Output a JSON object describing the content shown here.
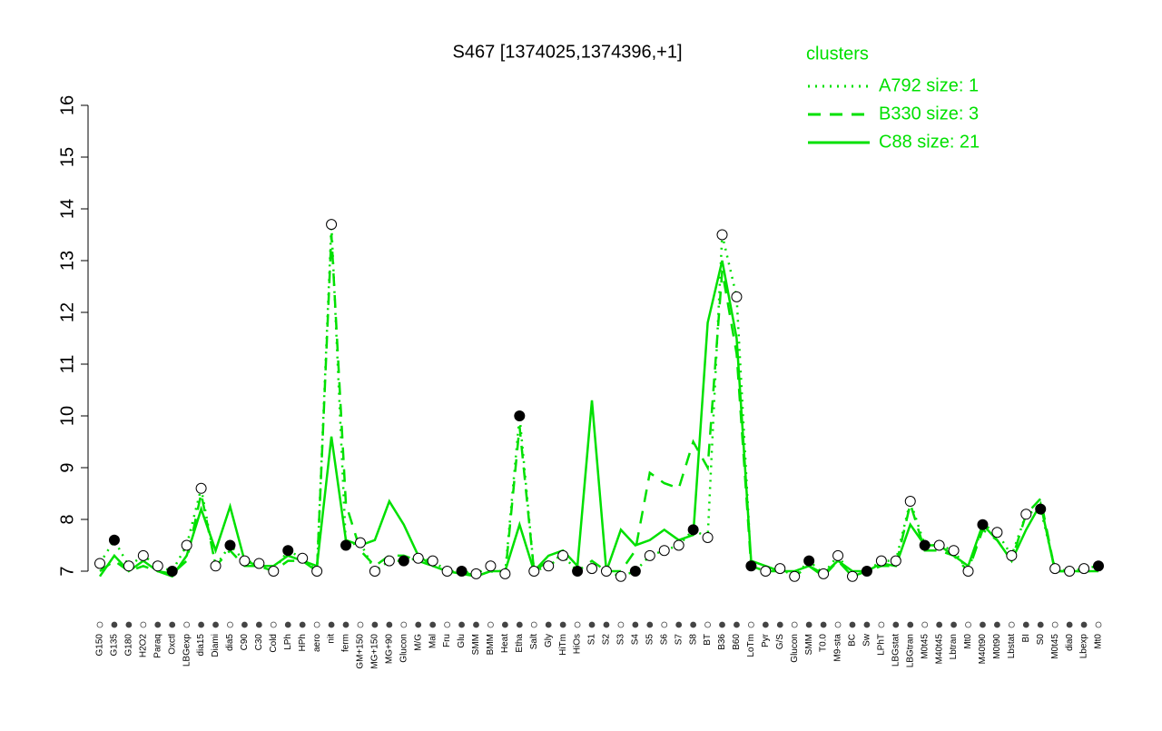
{
  "chart_data": {
    "type": "line",
    "title": "S467 [1374025,1374396,+1]",
    "legend_title": "clusters",
    "legend_color": "#00e000",
    "categories": [
      "G150",
      "G135",
      "G180",
      "H2O2",
      "Paraq",
      "Oxctl",
      "LBGexp",
      "dia15",
      "Diami",
      "dia5",
      "C90",
      "C30",
      "Cold",
      "LPh",
      "HPh",
      "aero",
      "nit",
      "ferm",
      "GM+150",
      "MG+150",
      "MG+90",
      "Glucon",
      "M/G",
      "Mal",
      "Fru",
      "Glu",
      "SMM",
      "BMM",
      "Heat",
      "Etha",
      "Salt",
      "Gly",
      "HiTm",
      "HiOs",
      "S1",
      "S2",
      "S3",
      "S4",
      "S5",
      "S6",
      "S7",
      "S8",
      "BT",
      "B36",
      "B60",
      "LoTm",
      "Pyr",
      "G/S",
      "Glucon",
      "SMM",
      "T0.0",
      "M9-sta",
      "BC",
      "Sw",
      "LPhT",
      "LBGstat",
      "LBGtran",
      "M0t45",
      "M40t45",
      "Lbtran",
      "Mt0",
      "M40t90",
      "M0t90",
      "Lbstat",
      "BI",
      "S0",
      "M0t45",
      "dia0",
      "Lbexp",
      "Mt0"
    ],
    "series": [
      {
        "name": "A792 size: 1",
        "color": "#00e000",
        "dash": "dotted",
        "values": [
          7.15,
          7.6,
          7.1,
          7.3,
          7.1,
          7.0,
          7.5,
          8.6,
          7.1,
          7.5,
          7.2,
          7.15,
          7.0,
          7.4,
          7.25,
          7.0,
          13.7,
          7.5,
          7.55,
          7.0,
          7.2,
          7.2,
          7.25,
          7.2,
          7.0,
          7.0,
          6.95,
          7.1,
          6.95,
          10.0,
          7.0,
          7.1,
          7.3,
          7.0,
          7.05,
          7.0,
          6.9,
          7.0,
          7.3,
          7.4,
          7.5,
          7.8,
          7.65,
          13.5,
          12.3,
          7.1,
          7.0,
          7.05,
          6.9,
          7.2,
          6.95,
          7.3,
          6.9,
          7.0,
          7.2,
          7.2,
          8.35,
          7.5,
          7.5,
          7.4,
          7.0,
          7.9,
          7.75,
          7.3,
          8.1,
          8.2,
          7.05,
          7.0,
          7.05,
          7.1
        ]
      },
      {
        "name": "B330 size: 3",
        "color": "#00e000",
        "dash": "dashed",
        "values": [
          7.0,
          7.2,
          7.0,
          7.1,
          7.0,
          6.95,
          7.2,
          8.5,
          7.1,
          7.4,
          7.1,
          7.1,
          7.0,
          7.2,
          7.2,
          7.0,
          13.5,
          8.3,
          7.4,
          7.1,
          7.3,
          7.3,
          7.2,
          7.1,
          7.0,
          7.0,
          6.9,
          7.0,
          6.9,
          9.8,
          7.0,
          7.2,
          7.3,
          7.0,
          7.2,
          7.0,
          7.0,
          7.4,
          8.9,
          8.7,
          8.6,
          9.5,
          9.0,
          12.8,
          11.2,
          7.1,
          7.0,
          7.0,
          6.9,
          7.1,
          6.9,
          7.2,
          6.9,
          7.0,
          7.1,
          7.1,
          8.3,
          7.4,
          7.4,
          7.3,
          7.0,
          7.8,
          7.6,
          7.2,
          8.1,
          8.4,
          7.0,
          7.0,
          7.0,
          7.0
        ]
      },
      {
        "name": "C88 size: 21",
        "color": "#00e000",
        "dash": "solid",
        "values": [
          6.9,
          7.3,
          7.0,
          7.2,
          7.0,
          6.9,
          7.3,
          8.2,
          7.4,
          8.25,
          7.2,
          7.1,
          7.1,
          7.3,
          7.2,
          7.1,
          9.6,
          7.6,
          7.5,
          7.6,
          8.35,
          7.9,
          7.3,
          7.1,
          7.0,
          6.95,
          6.9,
          7.0,
          7.0,
          7.9,
          7.0,
          7.3,
          7.4,
          7.1,
          10.3,
          7.0,
          7.8,
          7.5,
          7.6,
          7.8,
          7.6,
          7.7,
          11.8,
          13.0,
          11.5,
          7.2,
          7.1,
          7.0,
          7.0,
          7.1,
          6.95,
          7.2,
          7.0,
          7.0,
          7.15,
          7.1,
          7.9,
          7.5,
          7.5,
          7.3,
          7.1,
          7.9,
          7.6,
          7.2,
          7.8,
          8.3,
          7.0,
          7.0,
          7.0,
          7.0
        ]
      }
    ],
    "points": {
      "color": "#000000",
      "values": [
        7.15,
        7.6,
        7.1,
        7.3,
        7.1,
        7.0,
        7.5,
        8.6,
        7.1,
        7.5,
        7.2,
        7.15,
        7.0,
        7.4,
        7.25,
        7.0,
        13.7,
        7.5,
        7.55,
        7.0,
        7.2,
        7.2,
        7.25,
        7.2,
        7.0,
        7.0,
        6.95,
        7.1,
        6.95,
        10.0,
        7.0,
        7.1,
        7.3,
        7.0,
        7.05,
        7.0,
        6.9,
        7.0,
        7.3,
        7.4,
        7.5,
        7.8,
        7.65,
        13.5,
        12.3,
        7.1,
        7.0,
        7.05,
        6.9,
        7.2,
        6.95,
        7.3,
        6.9,
        7.0,
        7.2,
        7.2,
        8.35,
        7.5,
        7.5,
        7.4,
        7.0,
        7.9,
        7.75,
        7.3,
        8.1,
        8.2,
        7.05,
        7.0,
        7.05,
        7.1
      ]
    },
    "ylim": [
      7,
      16
    ],
    "yticks": [
      7,
      8,
      9,
      10,
      11,
      12,
      13,
      14,
      15,
      16
    ],
    "grid": false
  }
}
